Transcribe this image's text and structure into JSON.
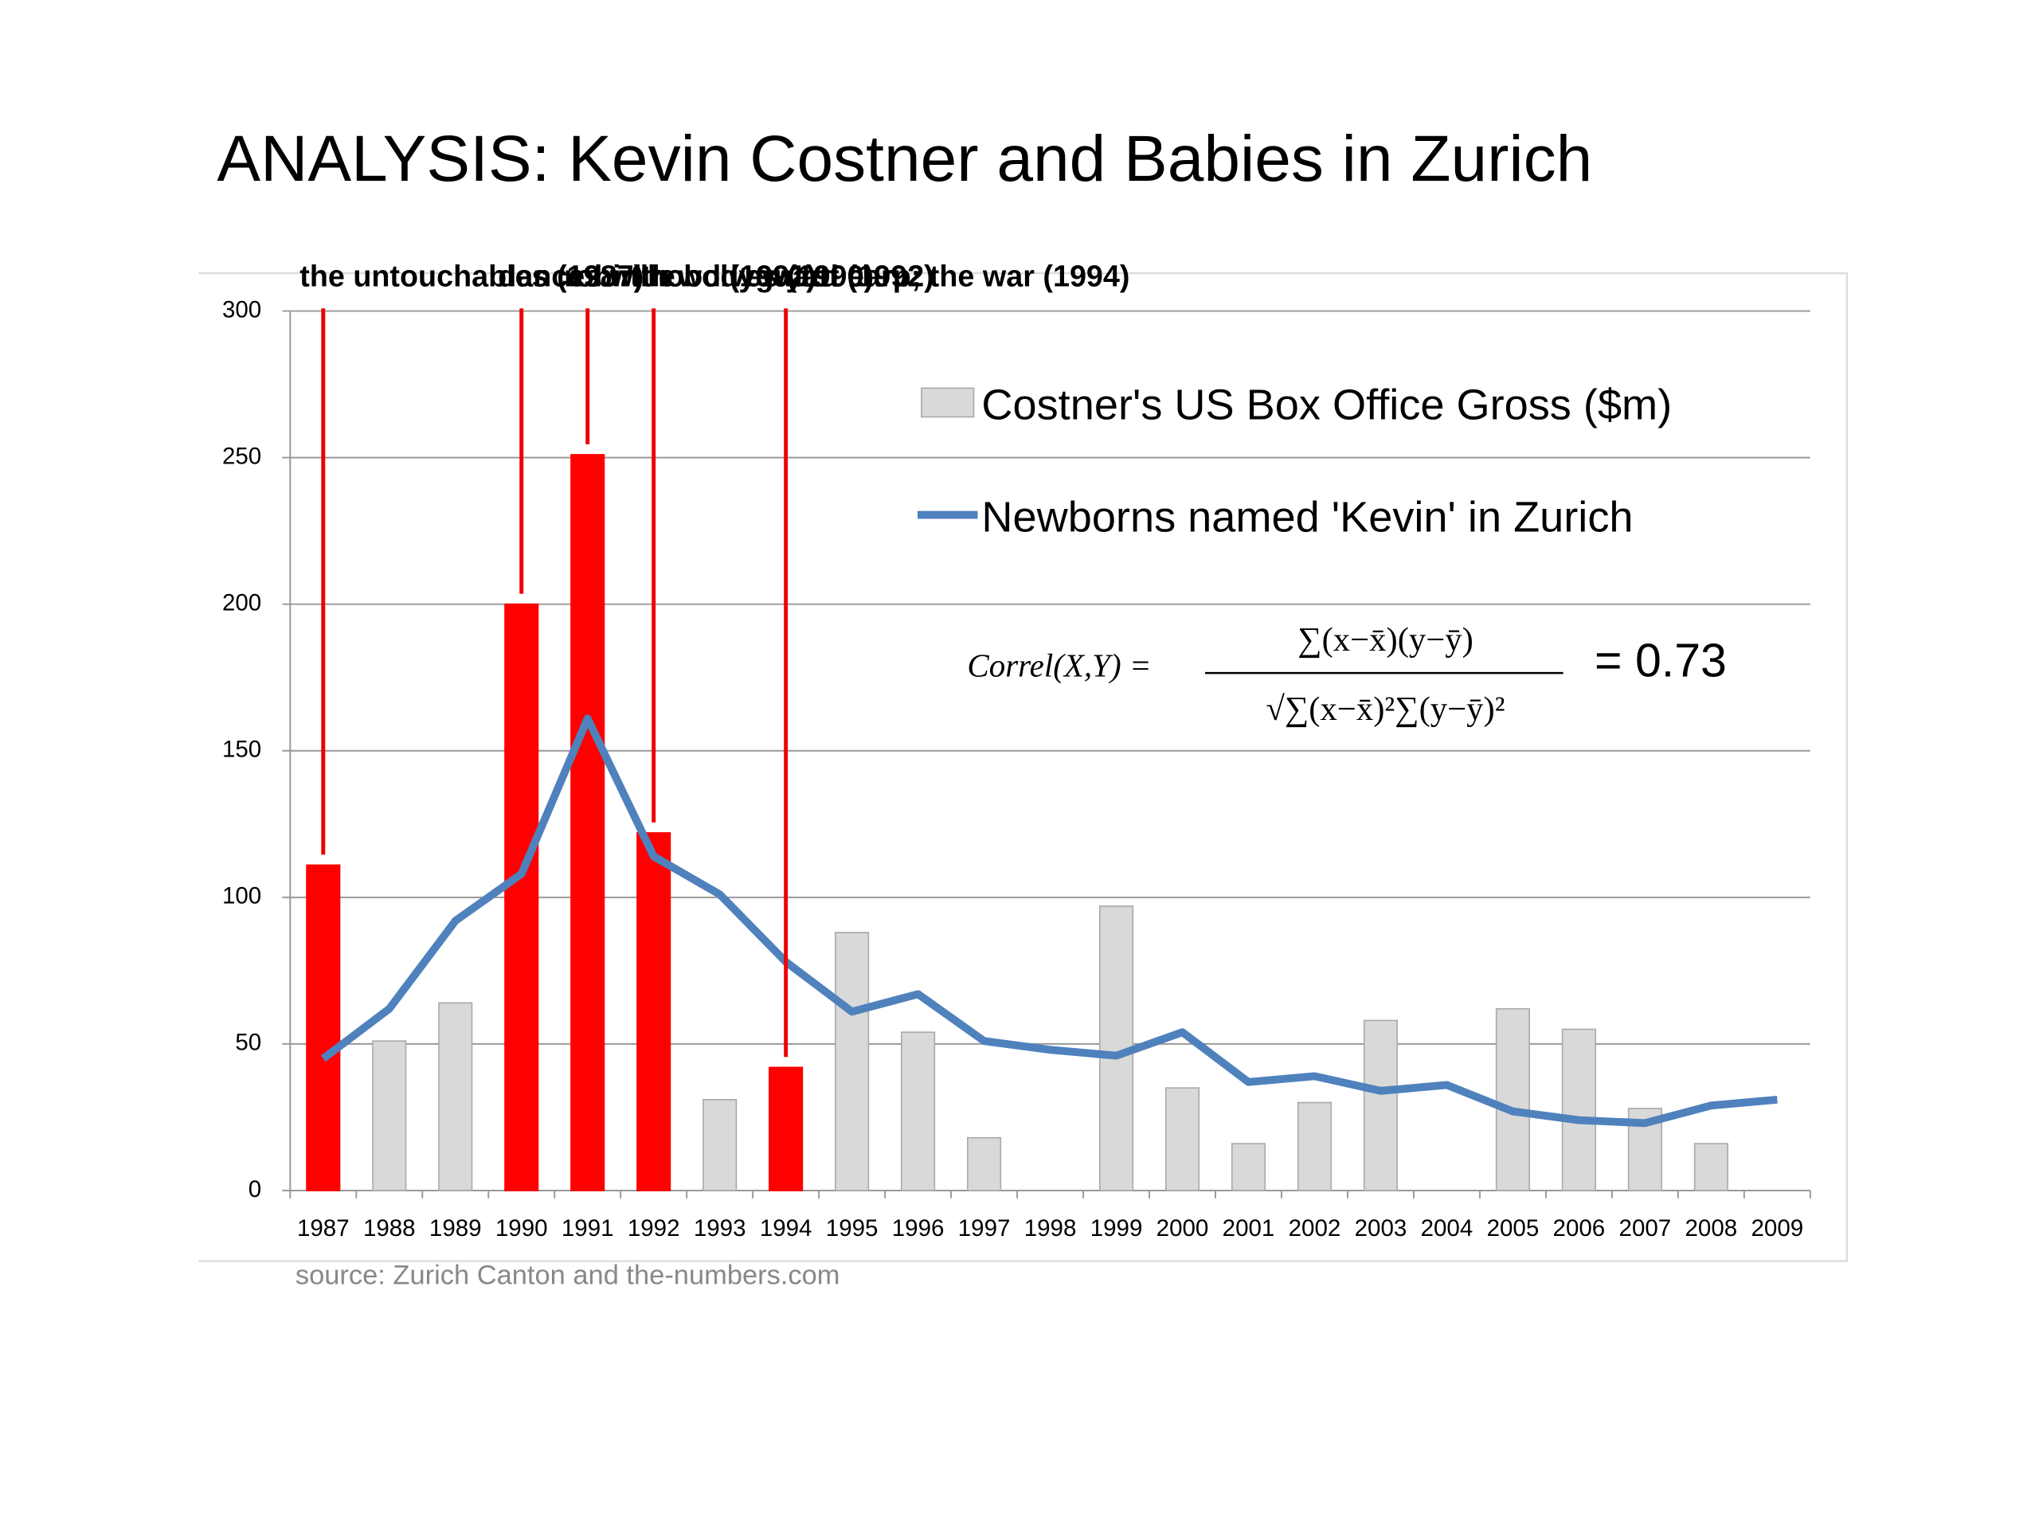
{
  "chart_data": {
    "type": "bar",
    "title": "ANALYSIS: Kevin Costner and Babies in Zurich",
    "source": "source: Zurich Canton and the-numbers.com",
    "categories": [
      "1987",
      "1988",
      "1989",
      "1990",
      "1991",
      "1992",
      "1993",
      "1994",
      "1995",
      "1996",
      "1997",
      "1998",
      "1999",
      "2000",
      "2001",
      "2002",
      "2003",
      "2004",
      "2005",
      "2006",
      "2007",
      "2008",
      "2009"
    ],
    "series": [
      {
        "name": "Costner's US Box Office Gross ($m)",
        "type": "bar",
        "color": "#d9d9d9",
        "highlight_color": "#ff0000",
        "values": [
          111,
          51,
          64,
          200,
          251,
          122,
          31,
          42,
          88,
          54,
          18,
          null,
          97,
          35,
          16,
          30,
          58,
          null,
          62,
          55,
          28,
          16,
          null
        ]
      },
      {
        "name": "Newborns named 'Kevin' in Zurich",
        "type": "line",
        "color": "#4f81bd",
        "values": [
          45,
          62,
          92,
          108,
          161,
          114,
          101,
          78,
          61,
          67,
          51,
          48,
          46,
          54,
          37,
          39,
          34,
          36,
          27,
          24,
          23,
          29,
          31
        ]
      }
    ],
    "annotations": [
      {
        "text": "the untouchables (1987)",
        "category": "1987"
      },
      {
        "text": "dances with wolves (1990)",
        "category": "1990"
      },
      {
        "text": "robin hood (1991)",
        "category": "1991"
      },
      {
        "text": "the bodyguard (1992)",
        "category": "1992"
      },
      {
        "text": "wyatt earp; the war (1994)",
        "category": "1994"
      }
    ],
    "formula": {
      "lhs": "Correl(X,Y) =",
      "numerator": "∑(x−x̄)(y−ȳ)",
      "denominator": "√∑(x−x̄)²∑(y−ȳ)²",
      "result": "= 0.73"
    },
    "ylim": [
      0,
      300
    ],
    "yticks": [
      0,
      50,
      100,
      150,
      200,
      250,
      300
    ],
    "grid": true
  }
}
